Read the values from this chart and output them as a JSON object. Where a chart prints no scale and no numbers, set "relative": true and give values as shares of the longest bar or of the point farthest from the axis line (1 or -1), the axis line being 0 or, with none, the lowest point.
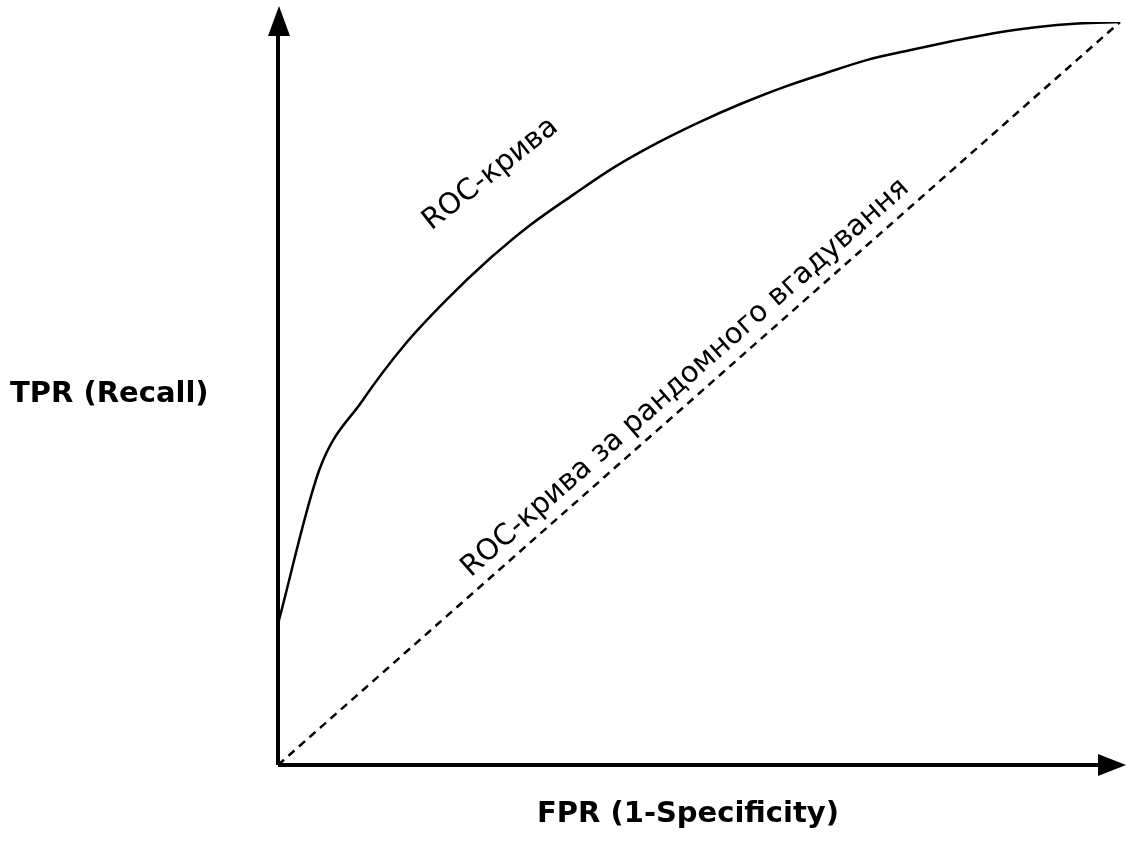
{
  "chart_data": {
    "type": "line",
    "relative": true,
    "xlabel": "FPR (1-Specificity)",
    "ylabel": "TPR (Recall)",
    "marker": "none",
    "categories": [
      null,
      null,
      null,
      null,
      null,
      null,
      null,
      null,
      null,
      null,
      null,
      null,
      null,
      null,
      null,
      null,
      null,
      null,
      null,
      null,
      null
    ],
    "series": [
      {
        "name": "ROC-крива",
        "color": "#000000",
        "line_style": "solid",
        "values": [
          0.19,
          0.4,
          0.49,
          0.565,
          0.626,
          0.68,
          0.727,
          0.767,
          0.805,
          0.837,
          0.865,
          0.89,
          0.912,
          0.931,
          0.949,
          0.962,
          0.974,
          0.985,
          0.993,
          0.998,
          1
        ]
      },
      {
        "name": "ROC-крива за рандомного вгадування",
        "color": "#000000",
        "line_style": "dashed",
        "values": [
          0,
          0.05,
          0.1,
          0.15,
          0.2,
          0.25,
          0.3,
          0.35,
          0.4,
          0.45,
          0.5,
          0.55,
          0.6,
          0.65,
          0.7,
          0.75,
          0.8,
          0.85,
          0.9,
          0.95,
          1
        ]
      }
    ]
  }
}
